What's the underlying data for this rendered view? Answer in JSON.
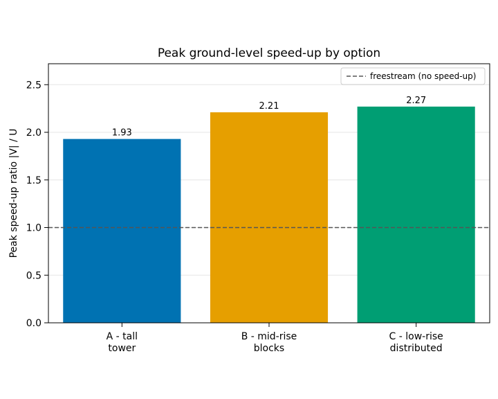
{
  "chart_data": {
    "type": "bar",
    "title": "Peak ground-level speed-up by option",
    "xlabel": "",
    "ylabel": "Peak speed-up ratio  |V| / U",
    "ylim": [
      0,
      2.72
    ],
    "yticks": [
      0.0,
      0.5,
      1.0,
      1.5,
      2.0,
      2.5
    ],
    "ytick_labels": [
      "0.0",
      "0.5",
      "1.0",
      "1.5",
      "2.0",
      "2.5"
    ],
    "grid": "y",
    "categories": [
      [
        "A - tall",
        "tower"
      ],
      [
        "B - mid-rise",
        "blocks"
      ],
      [
        "C - low-rise",
        "distributed"
      ]
    ],
    "values": [
      1.93,
      2.21,
      2.27
    ],
    "value_labels": [
      "1.93",
      "2.21",
      "2.27"
    ],
    "colors": [
      "#0072b2",
      "#e69f00",
      "#009e73"
    ],
    "reference_line": {
      "y": 1.0,
      "label": "freestream (no speed-up)",
      "style": "dashed",
      "color": "#555555"
    },
    "legend": {
      "placement": "top-right",
      "entries": [
        "freestream (no speed-up)"
      ]
    }
  }
}
